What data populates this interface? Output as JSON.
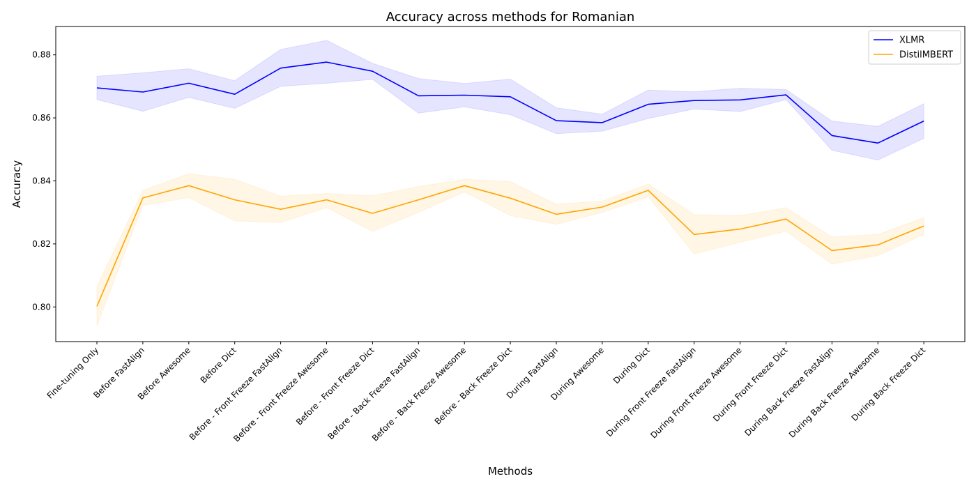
{
  "chart_data": {
    "type": "line",
    "title": "Accuracy across methods for Romanian",
    "xlabel": "Methods",
    "ylabel": "Accuracy",
    "categories": [
      "Fine-tuning Only",
      "Before FastAlign",
      "Before Awesome",
      "Before Dict",
      "Before - Front Freeze FastAlign",
      "Before - Front Freeze Awesome",
      "Before - Front Freeze Dict",
      "Before - Back Freeze FastAlign",
      "Before - Back Freeze Awesome",
      "Before - Back Freeze Dict",
      "During FastAlign",
      "During Awesome",
      "During Dict",
      "During Front Freeze FastAlign",
      "During Front Freeze Awesome",
      "During Front Freeze Dict",
      "During Back Freeze FastAlign",
      "During Back Freeze Awesome",
      "During Back Freeze Dict"
    ],
    "ylim": [
      0.789,
      0.889
    ],
    "yticks": [
      0.8,
      0.82,
      0.84,
      0.86,
      0.88
    ],
    "ytick_labels": [
      "0.80",
      "0.82",
      "0.84",
      "0.86",
      "0.88"
    ],
    "grid": false,
    "legend_position": "top-right",
    "series": [
      {
        "name": "XLMR",
        "color": "#0000ff",
        "values": [
          0.8695,
          0.8682,
          0.871,
          0.8675,
          0.8758,
          0.8777,
          0.8748,
          0.867,
          0.8672,
          0.8667,
          0.8591,
          0.8585,
          0.8643,
          0.8655,
          0.8657,
          0.8673,
          0.8544,
          0.852,
          0.859
        ],
        "lower": [
          0.8658,
          0.8621,
          0.8665,
          0.863,
          0.87,
          0.871,
          0.8722,
          0.8615,
          0.8635,
          0.861,
          0.855,
          0.8558,
          0.8598,
          0.8628,
          0.862,
          0.8658,
          0.8497,
          0.8466,
          0.8535
        ],
        "upper": [
          0.8732,
          0.8743,
          0.8756,
          0.8718,
          0.8817,
          0.8846,
          0.8773,
          0.8725,
          0.8709,
          0.8723,
          0.8632,
          0.8612,
          0.8688,
          0.8683,
          0.8694,
          0.869,
          0.859,
          0.8573,
          0.8645
        ],
        "band_color": "#0000ff"
      },
      {
        "name": "DistilMBERT",
        "color": "#ffa500",
        "values": [
          0.8002,
          0.8346,
          0.8385,
          0.834,
          0.831,
          0.834,
          0.8297,
          0.834,
          0.8385,
          0.8345,
          0.8294,
          0.8317,
          0.837,
          0.823,
          0.8247,
          0.8279,
          0.8179,
          0.8197,
          0.8257
        ],
        "lower": [
          0.794,
          0.8322,
          0.8347,
          0.8273,
          0.8268,
          0.8315,
          0.824,
          0.83,
          0.8365,
          0.829,
          0.8262,
          0.83,
          0.835,
          0.8168,
          0.8205,
          0.824,
          0.8136,
          0.8163,
          0.823
        ],
        "upper": [
          0.8065,
          0.837,
          0.8423,
          0.8405,
          0.8352,
          0.836,
          0.8353,
          0.8382,
          0.8405,
          0.8398,
          0.8326,
          0.8336,
          0.839,
          0.8293,
          0.829,
          0.8315,
          0.8222,
          0.823,
          0.8283
        ],
        "band_color": "#ffa500"
      }
    ]
  }
}
